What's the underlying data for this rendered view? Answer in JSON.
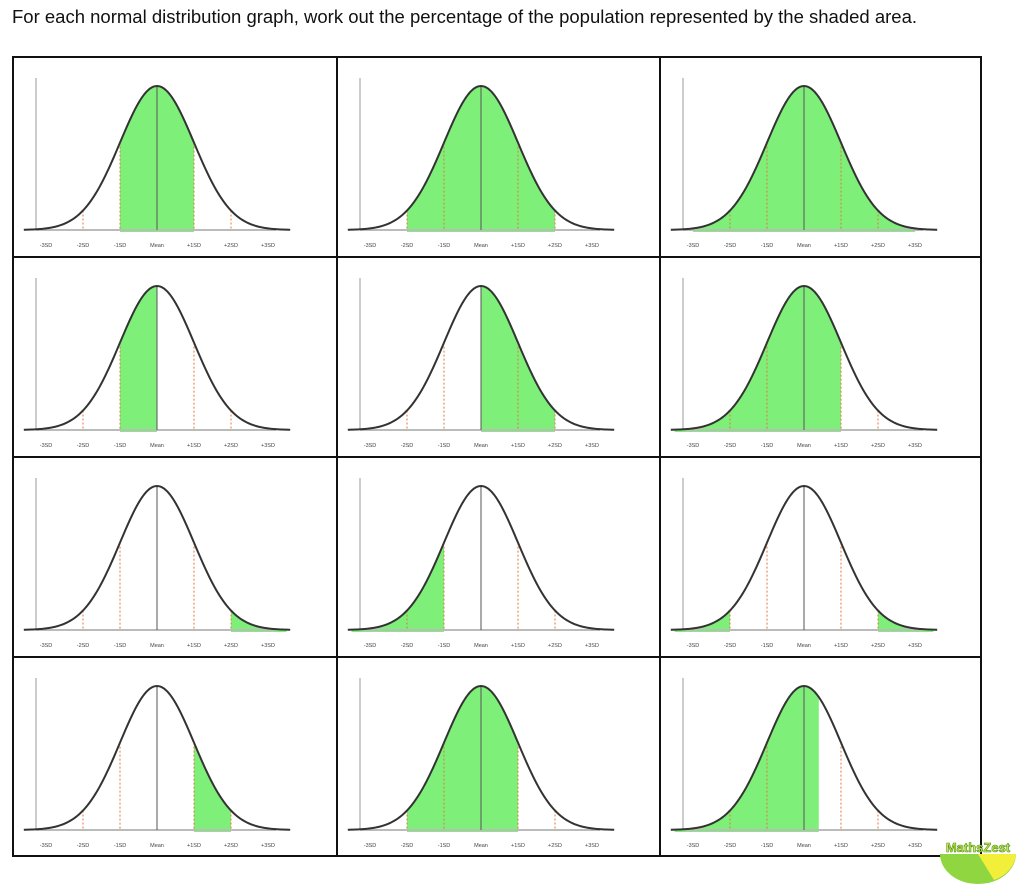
{
  "instruction": "For each normal distribution graph, work out the percentage of the population represented by the shaded area.",
  "axis_labels": [
    "-3SD",
    "-2SD",
    "-1SD",
    "Mean",
    "+1SD",
    "+2SD",
    "+3SD"
  ],
  "colors": {
    "shade": "#7ef07a",
    "curve": "#333333",
    "sd_lines": "#e07a3a",
    "border": "#111111"
  },
  "graphs": [
    {
      "shaded": [
        [
          -1,
          1
        ]
      ]
    },
    {
      "shaded": [
        [
          -2,
          2
        ]
      ]
    },
    {
      "shaded": [
        [
          -3,
          3
        ]
      ]
    },
    {
      "shaded": [
        [
          -1,
          0
        ]
      ]
    },
    {
      "shaded": [
        [
          0,
          2
        ]
      ]
    },
    {
      "shaded": [
        [
          -3.5,
          1
        ]
      ]
    },
    {
      "shaded": [
        [
          2,
          3.5
        ]
      ]
    },
    {
      "shaded": [
        [
          -3.5,
          -1
        ]
      ]
    },
    {
      "shaded": [
        [
          -3.5,
          -2
        ],
        [
          2,
          3.5
        ]
      ]
    },
    {
      "shaded": [
        [
          1,
          2
        ]
      ]
    },
    {
      "shaded": [
        [
          -2,
          1
        ]
      ]
    },
    {
      "shaded": [
        [
          -3.5,
          0.4
        ]
      ]
    }
  ],
  "logo": {
    "text": "MathsZest"
  }
}
